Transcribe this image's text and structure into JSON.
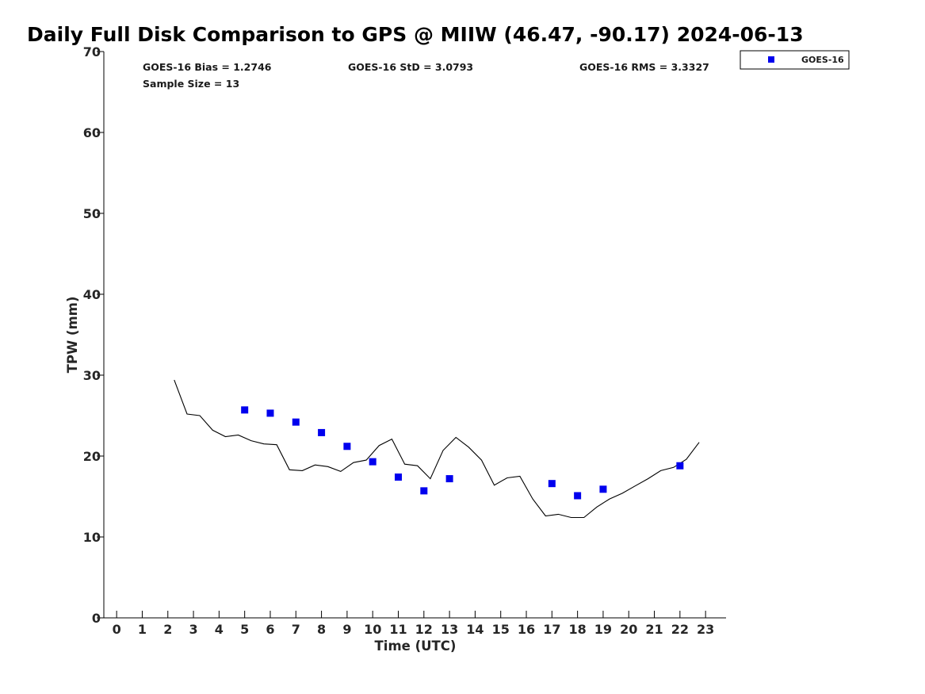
{
  "chart_data": {
    "type": "line",
    "title": "Daily Full Disk Comparison to GPS @ MIIW (46.47, -90.17) 2024-06-13",
    "xlabel": "Time (UTC)",
    "ylabel": "TPW (mm)",
    "xlim": [
      -0.5,
      23.8
    ],
    "ylim": [
      0,
      70
    ],
    "x_ticks": [
      0,
      1,
      2,
      3,
      4,
      5,
      6,
      7,
      8,
      9,
      10,
      11,
      12,
      13,
      14,
      15,
      16,
      17,
      18,
      19,
      20,
      21,
      22,
      23
    ],
    "y_ticks": [
      0,
      10,
      20,
      30,
      40,
      50,
      60,
      70
    ],
    "grid": false,
    "legend_placement": "outside-top-right",
    "annotations": {
      "bias": "GOES-16 Bias = 1.2746",
      "std": "GOES-16 StD = 3.0793",
      "rms": "GOES-16 RMS = 3.3327",
      "sample_size": "Sample Size = 13"
    },
    "series": [
      {
        "kind": "line",
        "color": "#000000",
        "x": [
          2.25,
          2.75,
          3.25,
          3.75,
          4.25,
          4.75,
          5.25,
          5.75,
          6.25,
          6.75,
          7.25,
          7.75,
          8.25,
          8.75,
          9.25,
          9.75,
          10.25,
          10.75,
          11.25,
          11.75,
          12.25,
          12.75,
          13.25,
          13.75,
          14.25,
          14.75,
          15.25,
          15.75,
          16.25,
          16.75,
          17.25,
          17.75,
          18.25,
          18.75,
          19.25,
          19.75,
          20.25,
          20.75,
          21.25,
          21.75,
          22.25,
          22.75
        ],
        "values": [
          29.4,
          25.2,
          25.0,
          23.2,
          22.4,
          22.6,
          21.9,
          21.5,
          21.4,
          18.3,
          18.2,
          18.9,
          18.7,
          18.1,
          19.2,
          19.5,
          21.3,
          22.1,
          19.0,
          18.8,
          17.2,
          20.7,
          22.3,
          21.1,
          19.5,
          16.4,
          17.3,
          17.5,
          14.7,
          12.6,
          12.8,
          12.4,
          12.4,
          13.7,
          14.7,
          15.4,
          16.3,
          17.2,
          18.2,
          18.6,
          19.6,
          21.7
        ]
      },
      {
        "name": "GOES-16",
        "kind": "scatter",
        "color": "#0000ee",
        "x": [
          5,
          6,
          7,
          8,
          9,
          10,
          11,
          12,
          13,
          17,
          18,
          19,
          22
        ],
        "values": [
          25.7,
          25.3,
          24.2,
          22.9,
          21.2,
          19.3,
          17.4,
          15.7,
          17.2,
          16.6,
          15.1,
          15.9,
          18.8
        ]
      }
    ]
  }
}
